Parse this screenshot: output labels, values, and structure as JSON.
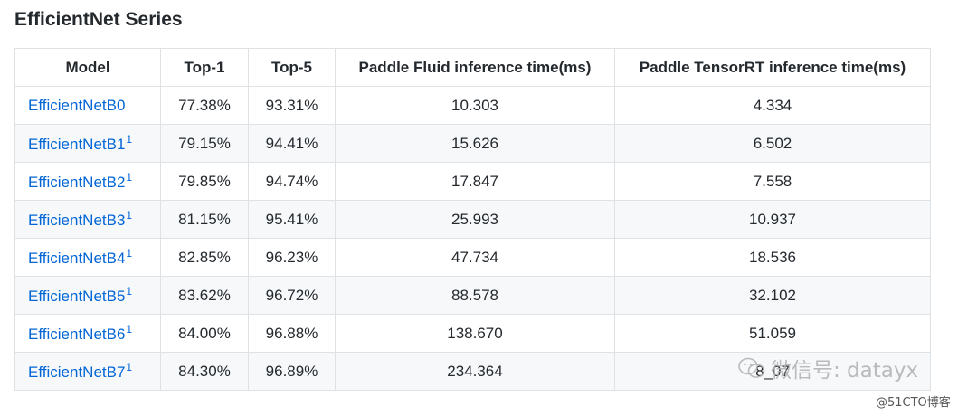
{
  "title": "EfficientNet Series",
  "table": {
    "headers": {
      "model": "Model",
      "top1": "Top-1",
      "top5": "Top-5",
      "fluid": "Paddle Fluid inference time(ms)",
      "trt": "Paddle TensorRT inference time(ms)"
    },
    "rows": [
      {
        "model": "EfficientNetB0",
        "note": "",
        "top1": "77.38%",
        "top5": "93.31%",
        "fluid": "10.303",
        "trt": "4.334"
      },
      {
        "model": "EfficientNetB1",
        "note": "1",
        "top1": "79.15%",
        "top5": "94.41%",
        "fluid": "15.626",
        "trt": "6.502"
      },
      {
        "model": "EfficientNetB2",
        "note": "1",
        "top1": "79.85%",
        "top5": "94.74%",
        "fluid": "17.847",
        "trt": "7.558"
      },
      {
        "model": "EfficientNetB3",
        "note": "1",
        "top1": "81.15%",
        "top5": "95.41%",
        "fluid": "25.993",
        "trt": "10.937"
      },
      {
        "model": "EfficientNetB4",
        "note": "1",
        "top1": "82.85%",
        "top5": "96.23%",
        "fluid": "47.734",
        "trt": "18.536"
      },
      {
        "model": "EfficientNetB5",
        "note": "1",
        "top1": "83.62%",
        "top5": "96.72%",
        "fluid": "88.578",
        "trt": "32.102"
      },
      {
        "model": "EfficientNetB6",
        "note": "1",
        "top1": "84.00%",
        "top5": "96.88%",
        "fluid": "138.670",
        "trt": "51.059"
      },
      {
        "model": "EfficientNetB7",
        "note": "1",
        "top1": "84.30%",
        "top5": "96.89%",
        "fluid": "234.364",
        "trt": "8_07"
      }
    ]
  },
  "watermark": {
    "text": "微信号: datayx",
    "credit": "@51CTO博客"
  },
  "colors": {
    "link": "#0366d6",
    "border": "#dfe2e5",
    "stripe": "#f6f8fa",
    "text": "#24292e",
    "watermark": "#b4b4b4"
  }
}
